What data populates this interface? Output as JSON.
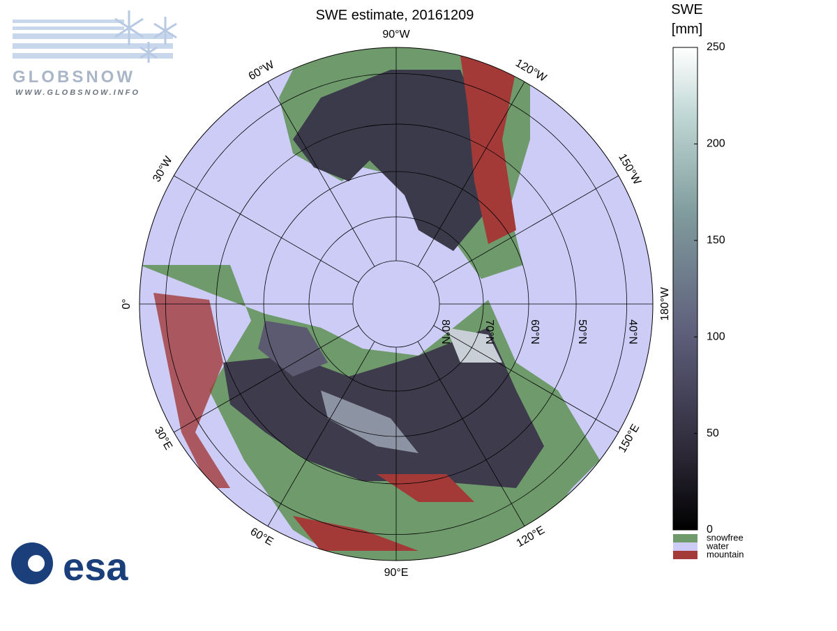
{
  "header": {
    "title": "SWE estimate, 20161209"
  },
  "logo": {
    "name": "GLOBSNOW",
    "url": "WWW.GLOBSNOW.INFO",
    "agency": "esa"
  },
  "map": {
    "meridians": [
      {
        "value": -90,
        "label": "90°W"
      },
      {
        "value": -120,
        "label": "120°W"
      },
      {
        "value": -150,
        "label": "150°W"
      },
      {
        "value": -180,
        "label": "180°W"
      },
      {
        "value": 150,
        "label": "150°E"
      },
      {
        "value": 120,
        "label": "120°E"
      },
      {
        "value": 90,
        "label": "90°E"
      },
      {
        "value": 60,
        "label": "60°E"
      },
      {
        "value": 30,
        "label": "30°E"
      },
      {
        "value": 0,
        "label": "0°"
      },
      {
        "value": -30,
        "label": "30°W"
      },
      {
        "value": -60,
        "label": "60°W"
      }
    ],
    "parallels": [
      {
        "value": 80,
        "label": "80°N"
      },
      {
        "value": 70,
        "label": "70°N"
      },
      {
        "value": 60,
        "label": "60°N"
      },
      {
        "value": 50,
        "label": "50°N"
      },
      {
        "value": 40,
        "label": "40°N"
      }
    ]
  },
  "colorbar": {
    "title": [
      "SWE",
      "[mm]"
    ],
    "range": [
      0,
      250
    ],
    "ticks": [
      0,
      50,
      100,
      150,
      200,
      250
    ],
    "classes": [
      {
        "label": "snowfree",
        "color": "#6f9a6c"
      },
      {
        "label": "water",
        "color": "#ccccf7"
      },
      {
        "label": "mountain",
        "color": "#a33a38"
      }
    ]
  }
}
